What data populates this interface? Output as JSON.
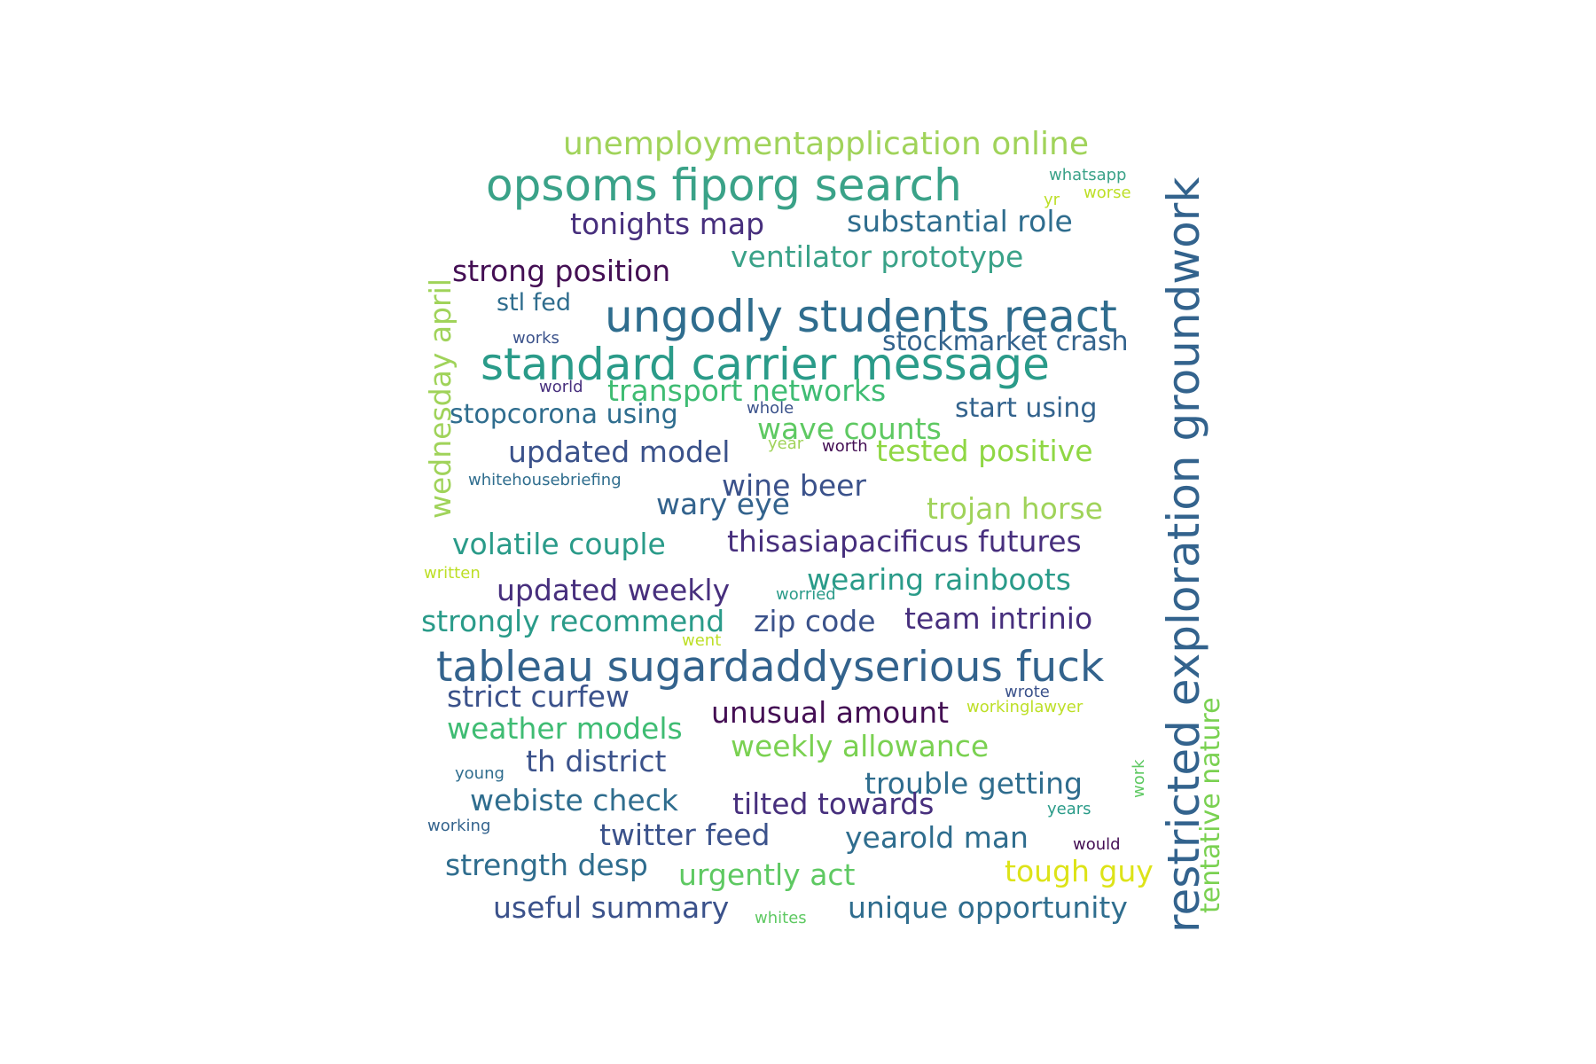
{
  "words": [
    {
      "text": "unemploymentapplication online",
      "color": "#a0d35a",
      "weight": 0.55
    },
    {
      "text": "opsoms fiporg search",
      "color": "#3aa288",
      "weight": 0.85
    },
    {
      "text": "substantial role",
      "color": "#2f6d8e",
      "weight": 0.55
    },
    {
      "text": "tonights map",
      "color": "#472f7d",
      "weight": 0.55
    },
    {
      "text": "ventilator prototype",
      "color": "#3aa288",
      "weight": 0.55
    },
    {
      "text": "strong position",
      "color": "#440f54",
      "weight": 0.55
    },
    {
      "text": "stl fed",
      "color": "#2f6d8e",
      "weight": 0.4
    },
    {
      "text": "ungodly students react",
      "color": "#2f6d8e",
      "weight": 0.85
    },
    {
      "text": "stockmarket crash",
      "color": "#33638d",
      "weight": 0.45
    },
    {
      "text": "standard carrier message",
      "color": "#2a9b89",
      "weight": 0.85
    },
    {
      "text": "transport networks",
      "color": "#3fbc73",
      "weight": 0.55
    },
    {
      "text": "stopcorona using",
      "color": "#2f6d8e",
      "weight": 0.45
    },
    {
      "text": "start using",
      "color": "#33638d",
      "weight": 0.45
    },
    {
      "text": "wave counts",
      "color": "#5ec962",
      "weight": 0.55
    },
    {
      "text": "updated model",
      "color": "#3b528b",
      "weight": 0.55
    },
    {
      "text": "tested positive",
      "color": "#8fd744",
      "weight": 0.55
    },
    {
      "text": "wine beer",
      "color": "#3b528b",
      "weight": 0.55
    },
    {
      "text": "wary eye",
      "color": "#33638d",
      "weight": 0.55
    },
    {
      "text": "trojan horse",
      "color": "#a0d35a",
      "weight": 0.55
    },
    {
      "text": "volatile couple",
      "color": "#2a9b89",
      "weight": 0.55
    },
    {
      "text": "thisasiapacificus futures",
      "color": "#472f7d",
      "weight": 0.55
    },
    {
      "text": "wearing rainboots",
      "color": "#2a9b89",
      "weight": 0.55
    },
    {
      "text": "updated weekly",
      "color": "#472f7d",
      "weight": 0.55
    },
    {
      "text": "strongly recommend",
      "color": "#2a9b89",
      "weight": 0.55
    },
    {
      "text": "zip code",
      "color": "#3b528b",
      "weight": 0.55
    },
    {
      "text": "team intrinio",
      "color": "#472f7d",
      "weight": 0.55
    },
    {
      "text": "tableau sugardaddyserious fuck",
      "color": "#33638d",
      "weight": 0.85
    },
    {
      "text": "strict curfew",
      "color": "#3b528b",
      "weight": 0.55
    },
    {
      "text": "unusual amount",
      "color": "#440f54",
      "weight": 0.55
    },
    {
      "text": "weather models",
      "color": "#3fbc73",
      "weight": 0.55
    },
    {
      "text": "weekly allowance",
      "color": "#7ad151",
      "weight": 0.55
    },
    {
      "text": "th district",
      "color": "#3b528b",
      "weight": 0.55
    },
    {
      "text": "trouble getting",
      "color": "#2f6d8e",
      "weight": 0.55
    },
    {
      "text": "webiste check",
      "color": "#2f6d8e",
      "weight": 0.55
    },
    {
      "text": "tilted towards",
      "color": "#472f7d",
      "weight": 0.55
    },
    {
      "text": "twitter feed",
      "color": "#3b528b",
      "weight": 0.55
    },
    {
      "text": "yearold man",
      "color": "#2f6d8e",
      "weight": 0.55
    },
    {
      "text": "strength desp",
      "color": "#2f6d8e",
      "weight": 0.55
    },
    {
      "text": "urgently act",
      "color": "#5ec962",
      "weight": 0.55
    },
    {
      "text": "tough guy",
      "color": "#dde318",
      "weight": 0.55
    },
    {
      "text": "useful summary",
      "color": "#3b528b",
      "weight": 0.55
    },
    {
      "text": "unique opportunity",
      "color": "#2f6d8e",
      "weight": 0.55
    },
    {
      "text": "restricted exploration groundwork",
      "color": "#33638d",
      "weight": 0.85
    },
    {
      "text": "wednesday april",
      "color": "#a0d35a",
      "weight": 0.55
    },
    {
      "text": "tentative nature",
      "color": "#7ad151",
      "weight": 0.45
    },
    {
      "text": "whatsapp",
      "color": "#3aa288",
      "weight": 0.3
    },
    {
      "text": "yr",
      "color": "#bddf26",
      "weight": 0.3
    },
    {
      "text": "worse",
      "color": "#bddf26",
      "weight": 0.3
    },
    {
      "text": "works",
      "color": "#3b528b",
      "weight": 0.3
    },
    {
      "text": "world",
      "color": "#472f7d",
      "weight": 0.3
    },
    {
      "text": "whole",
      "color": "#3b528b",
      "weight": 0.3
    },
    {
      "text": "year",
      "color": "#a0d35a",
      "weight": 0.3
    },
    {
      "text": "worth",
      "color": "#440f54",
      "weight": 0.3
    },
    {
      "text": "whitehousebriefing",
      "color": "#2f6d8e",
      "weight": 0.3
    },
    {
      "text": "written",
      "color": "#bddf26",
      "weight": 0.3
    },
    {
      "text": "worried",
      "color": "#2a9b89",
      "weight": 0.3
    },
    {
      "text": "went",
      "color": "#bddf26",
      "weight": 0.3
    },
    {
      "text": "wrote",
      "color": "#3b528b",
      "weight": 0.3
    },
    {
      "text": "workinglawyer",
      "color": "#bddf26",
      "weight": 0.3
    },
    {
      "text": "young",
      "color": "#2f6d8e",
      "weight": 0.3
    },
    {
      "text": "work",
      "color": "#5ec962",
      "weight": 0.3
    },
    {
      "text": "working",
      "color": "#33638d",
      "weight": 0.3
    },
    {
      "text": "years",
      "color": "#2a9b89",
      "weight": 0.3
    },
    {
      "text": "would",
      "color": "#440f54",
      "weight": 0.3
    },
    {
      "text": "whites",
      "color": "#5ec962",
      "weight": 0.3
    }
  ]
}
